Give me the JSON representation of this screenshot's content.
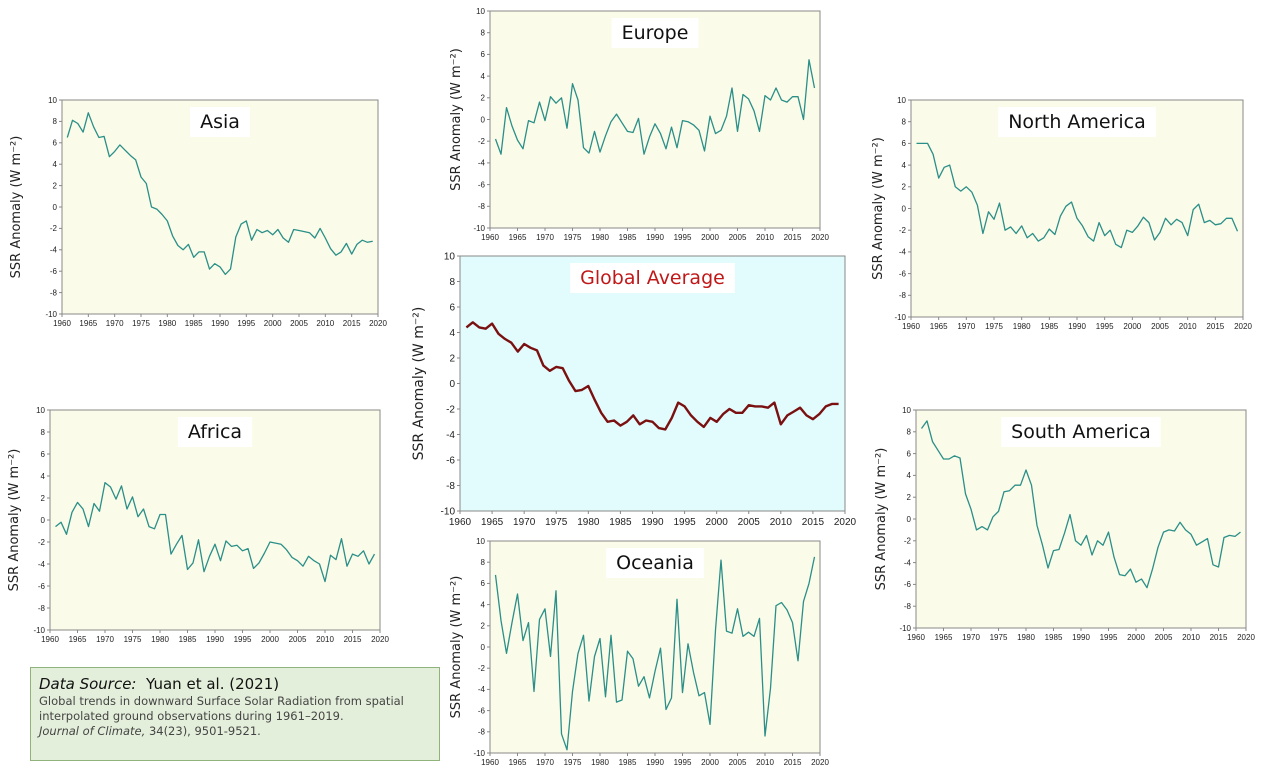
{
  "chart_data": [
    {
      "type": "line",
      "title": "Asia",
      "ylabel": "SSR Anomaly (W m⁻²)",
      "color": "#2a8f88",
      "background": "#fbfbe9",
      "title_color": "#111111",
      "x": [
        1961,
        1962,
        1963,
        1964,
        1965,
        1966,
        1967,
        1968,
        1969,
        1970,
        1971,
        1972,
        1973,
        1974,
        1975,
        1976,
        1977,
        1978,
        1979,
        1980,
        1981,
        1982,
        1983,
        1984,
        1985,
        1986,
        1987,
        1988,
        1989,
        1990,
        1991,
        1992,
        1993,
        1994,
        1995,
        1996,
        1997,
        1998,
        1999,
        2000,
        2001,
        2002,
        2003,
        2004,
        2005,
        2006,
        2007,
        2008,
        2009,
        2010,
        2011,
        2012,
        2013,
        2014,
        2015,
        2016,
        2017,
        2018,
        2019
      ],
      "values": [
        6.5,
        8.1,
        7.8,
        7.0,
        8.8,
        7.5,
        6.5,
        6.6,
        4.7,
        5.2,
        5.8,
        5.3,
        4.8,
        4.4,
        2.8,
        2.2,
        0.0,
        -0.2,
        -0.7,
        -1.3,
        -2.7,
        -3.6,
        -4.0,
        -3.5,
        -4.7,
        -4.2,
        -4.2,
        -5.8,
        -5.3,
        -5.6,
        -6.3,
        -5.8,
        -2.8,
        -1.6,
        -1.3,
        -3.1,
        -2.1,
        -2.4,
        -2.2,
        -2.6,
        -2.1,
        -2.9,
        -3.3,
        -2.1,
        -2.2,
        -2.3,
        -2.4,
        -2.9,
        -2.0,
        -2.9,
        -3.9,
        -4.5,
        -4.2,
        -3.4,
        -4.4,
        -3.5,
        -3.1,
        -3.3,
        -3.2
      ],
      "xlim": [
        1960,
        2020
      ],
      "xticks": [
        1960,
        1965,
        1970,
        1975,
        1980,
        1985,
        1990,
        1995,
        2000,
        2005,
        2010,
        2015,
        2020
      ],
      "ylim": [
        -10,
        10
      ],
      "yticks": [
        -10,
        -8,
        -6,
        -4,
        -2,
        0,
        2,
        4,
        6,
        8,
        10
      ]
    },
    {
      "type": "line",
      "title": "Europe",
      "ylabel": "SSR Anomaly (W m⁻²)",
      "color": "#2a8f88",
      "background": "#fbfbe9",
      "title_color": "#111111",
      "x": [
        1961,
        1962,
        1963,
        1964,
        1965,
        1966,
        1967,
        1968,
        1969,
        1970,
        1971,
        1972,
        1973,
        1974,
        1975,
        1976,
        1977,
        1978,
        1979,
        1980,
        1981,
        1982,
        1983,
        1984,
        1985,
        1986,
        1987,
        1988,
        1989,
        1990,
        1991,
        1992,
        1993,
        1994,
        1995,
        1996,
        1997,
        1998,
        1999,
        2000,
        2001,
        2002,
        2003,
        2004,
        2005,
        2006,
        2007,
        2008,
        2009,
        2010,
        2011,
        2012,
        2013,
        2014,
        2015,
        2016,
        2017,
        2018,
        2019
      ],
      "values": [
        -1.8,
        -3.2,
        1.1,
        -0.6,
        -1.9,
        -2.7,
        -0.1,
        -0.3,
        1.6,
        -0.1,
        2.1,
        1.5,
        2.0,
        -0.8,
        3.3,
        1.8,
        -2.6,
        -3.1,
        -1.1,
        -3.0,
        -1.5,
        -0.2,
        0.5,
        -0.3,
        -1.1,
        -1.2,
        0.1,
        -3.2,
        -1.6,
        -0.4,
        -1.3,
        -2.7,
        -0.7,
        -2.6,
        -0.1,
        -0.2,
        -0.5,
        -1.0,
        -2.9,
        0.3,
        -1.3,
        -1.0,
        0.3,
        2.9,
        -1.1,
        2.3,
        1.9,
        0.8,
        -1.1,
        2.2,
        1.8,
        2.9,
        1.8,
        1.6,
        2.1,
        2.1,
        0.0,
        5.5,
        2.9
      ],
      "xlim": [
        1960,
        2020
      ],
      "xticks": [
        1960,
        1965,
        1970,
        1975,
        1980,
        1985,
        1990,
        1995,
        2000,
        2005,
        2010,
        2015,
        2020
      ],
      "ylim": [
        -10,
        10
      ],
      "yticks": [
        -10,
        -8,
        -6,
        -4,
        -2,
        0,
        2,
        4,
        6,
        8,
        10
      ]
    },
    {
      "type": "line",
      "title": "North America",
      "ylabel": "SSR Anomaly (W m⁻²)",
      "color": "#2a8f88",
      "background": "#fbfbe9",
      "title_color": "#111111",
      "x": [
        1961,
        1962,
        1963,
        1964,
        1965,
        1966,
        1967,
        1968,
        1969,
        1970,
        1971,
        1972,
        1973,
        1974,
        1975,
        1976,
        1977,
        1978,
        1979,
        1980,
        1981,
        1982,
        1983,
        1984,
        1985,
        1986,
        1987,
        1988,
        1989,
        1990,
        1991,
        1992,
        1993,
        1994,
        1995,
        1996,
        1997,
        1998,
        1999,
        2000,
        2001,
        2002,
        2003,
        2004,
        2005,
        2006,
        2007,
        2008,
        2009,
        2010,
        2011,
        2012,
        2013,
        2014,
        2015,
        2016,
        2017,
        2018,
        2019
      ],
      "values": [
        6.0,
        6.0,
        6.0,
        5.0,
        2.8,
        3.8,
        4.0,
        2.0,
        1.6,
        2.0,
        1.5,
        0.3,
        -2.3,
        -0.3,
        -1.0,
        0.5,
        -2.0,
        -1.7,
        -2.3,
        -1.6,
        -2.7,
        -2.3,
        -3.0,
        -2.7,
        -1.9,
        -2.4,
        -0.7,
        0.2,
        0.6,
        -0.9,
        -1.6,
        -2.6,
        -3.0,
        -1.3,
        -2.5,
        -2.0,
        -3.3,
        -3.6,
        -2.0,
        -2.2,
        -1.6,
        -0.8,
        -1.3,
        -2.9,
        -2.2,
        -0.9,
        -1.5,
        -1.0,
        -1.3,
        -2.5,
        -0.1,
        0.4,
        -1.3,
        -1.1,
        -1.5,
        -1.4,
        -0.9,
        -0.9,
        -2.1
      ],
      "xlim": [
        1960,
        2020
      ],
      "xticks": [
        1960,
        1965,
        1970,
        1975,
        1980,
        1985,
        1990,
        1995,
        2000,
        2005,
        2010,
        2015,
        2020
      ],
      "ylim": [
        -10,
        10
      ],
      "yticks": [
        -10,
        -8,
        -6,
        -4,
        -2,
        0,
        2,
        4,
        6,
        8,
        10
      ]
    },
    {
      "type": "line",
      "title": "Africa",
      "ylabel": "SSR Anomaly (W m⁻²)",
      "color": "#2a8f88",
      "background": "#fbfbe9",
      "title_color": "#111111",
      "x": [
        1961,
        1962,
        1963,
        1964,
        1965,
        1966,
        1967,
        1968,
        1969,
        1970,
        1971,
        1972,
        1973,
        1974,
        1975,
        1976,
        1977,
        1978,
        1979,
        1980,
        1981,
        1982,
        1983,
        1984,
        1985,
        1986,
        1987,
        1988,
        1989,
        1990,
        1991,
        1992,
        1993,
        1994,
        1995,
        1996,
        1997,
        1998,
        1999,
        2000,
        2001,
        2002,
        2003,
        2004,
        2005,
        2006,
        2007,
        2008,
        2009,
        2010,
        2011,
        2012,
        2013,
        2014,
        2015,
        2016,
        2017,
        2018,
        2019
      ],
      "values": [
        -0.6,
        -0.2,
        -1.3,
        0.7,
        1.6,
        1.0,
        -0.6,
        1.5,
        0.8,
        3.4,
        3.0,
        1.9,
        3.1,
        1.0,
        2.1,
        0.3,
        1.0,
        -0.6,
        -0.8,
        0.5,
        0.5,
        -3.1,
        -2.2,
        -1.4,
        -4.5,
        -3.9,
        -1.8,
        -4.7,
        -3.3,
        -2.2,
        -3.7,
        -1.9,
        -2.4,
        -2.3,
        -2.8,
        -2.6,
        -4.4,
        -3.9,
        -3.0,
        -2.0,
        -2.1,
        -2.2,
        -2.7,
        -3.4,
        -3.7,
        -4.2,
        -3.3,
        -3.7,
        -4.0,
        -5.6,
        -3.2,
        -3.6,
        -1.7,
        -4.2,
        -3.1,
        -3.3,
        -2.8,
        -4.0,
        -3.1
      ],
      "xlim": [
        1960,
        2020
      ],
      "xticks": [
        1960,
        1965,
        1970,
        1975,
        1980,
        1985,
        1990,
        1995,
        2000,
        2005,
        2010,
        2015,
        2020
      ],
      "ylim": [
        -10,
        10
      ],
      "yticks": [
        -10,
        -8,
        -6,
        -4,
        -2,
        0,
        2,
        4,
        6,
        8,
        10
      ]
    },
    {
      "type": "line",
      "title": "Global Average",
      "ylabel": "SSR Anomaly (W m⁻²)",
      "color": "#7a1010",
      "background": "#e2fbfd",
      "title_color": "#c01818",
      "x": [
        1961,
        1962,
        1963,
        1964,
        1965,
        1966,
        1967,
        1968,
        1969,
        1970,
        1971,
        1972,
        1973,
        1974,
        1975,
        1976,
        1977,
        1978,
        1979,
        1980,
        1981,
        1982,
        1983,
        1984,
        1985,
        1986,
        1987,
        1988,
        1989,
        1990,
        1991,
        1992,
        1993,
        1994,
        1995,
        1996,
        1997,
        1998,
        1999,
        2000,
        2001,
        2002,
        2003,
        2004,
        2005,
        2006,
        2007,
        2008,
        2009,
        2010,
        2011,
        2012,
        2013,
        2014,
        2015,
        2016,
        2017,
        2018,
        2019
      ],
      "values": [
        4.4,
        4.8,
        4.4,
        4.3,
        4.7,
        3.9,
        3.5,
        3.2,
        2.5,
        3.1,
        2.8,
        2.6,
        1.4,
        1.0,
        1.3,
        1.2,
        0.2,
        -0.6,
        -0.5,
        -0.2,
        -1.3,
        -2.3,
        -3.0,
        -2.9,
        -3.3,
        -3.0,
        -2.5,
        -3.2,
        -2.9,
        -3.0,
        -3.5,
        -3.6,
        -2.7,
        -1.5,
        -1.8,
        -2.5,
        -3.0,
        -3.4,
        -2.7,
        -3.0,
        -2.4,
        -2.0,
        -2.3,
        -2.3,
        -1.7,
        -1.8,
        -1.8,
        -1.9,
        -1.5,
        -3.2,
        -2.5,
        -2.2,
        -1.9,
        -2.5,
        -2.8,
        -2.4,
        -1.8,
        -1.6,
        -1.6
      ],
      "xlim": [
        1960,
        2020
      ],
      "xticks": [
        1960,
        1965,
        1970,
        1975,
        1980,
        1985,
        1990,
        1995,
        2000,
        2005,
        2010,
        2015,
        2020
      ],
      "ylim": [
        -10,
        10
      ],
      "yticks": [
        -10,
        -8,
        -6,
        -4,
        -2,
        0,
        2,
        4,
        6,
        8,
        10
      ]
    },
    {
      "type": "line",
      "title": "Oceania",
      "ylabel": "SSR Anomaly (W m⁻²)",
      "color": "#2a8f88",
      "background": "#fbfbe9",
      "title_color": "#111111",
      "x": [
        1961,
        1962,
        1963,
        1964,
        1965,
        1966,
        1967,
        1968,
        1969,
        1970,
        1971,
        1972,
        1973,
        1974,
        1975,
        1976,
        1977,
        1978,
        1979,
        1980,
        1981,
        1982,
        1983,
        1984,
        1985,
        1986,
        1987,
        1988,
        1989,
        1990,
        1991,
        1992,
        1993,
        1994,
        1995,
        1996,
        1997,
        1998,
        1999,
        2000,
        2001,
        2002,
        2003,
        2004,
        2005,
        2006,
        2007,
        2008,
        2009,
        2010,
        2011,
        2012,
        2013,
        2014,
        2015,
        2016,
        2017,
        2018,
        2019
      ],
      "values": [
        6.8,
        2.5,
        -0.6,
        2.3,
        5.0,
        0.6,
        2.3,
        -4.2,
        2.6,
        3.6,
        -0.9,
        5.3,
        -8.2,
        -9.7,
        -4.2,
        -0.6,
        1.1,
        -5.1,
        -0.9,
        0.8,
        -4.7,
        1.1,
        -5.2,
        -5.0,
        -0.4,
        -1.1,
        -3.7,
        -2.8,
        -4.8,
        -2.3,
        -0.1,
        -5.9,
        -4.8,
        4.5,
        -4.3,
        0.3,
        -2.4,
        -4.6,
        -4.3,
        -7.3,
        1.6,
        8.2,
        1.5,
        1.3,
        3.6,
        1.0,
        1.4,
        1.0,
        2.7,
        -8.4,
        -3.9,
        3.9,
        4.2,
        3.5,
        2.3,
        -1.3,
        4.3,
        6.0,
        8.5
      ],
      "xlim": [
        1960,
        2020
      ],
      "xticks": [
        1960,
        1965,
        1970,
        1975,
        1980,
        1985,
        1990,
        1995,
        2000,
        2005,
        2010,
        2015,
        2020
      ],
      "ylim": [
        -10,
        10
      ],
      "yticks": [
        -10,
        -8,
        -6,
        -4,
        -2,
        0,
        2,
        4,
        6,
        8,
        10
      ]
    },
    {
      "type": "line",
      "title": "South America",
      "ylabel": "SSR Anomaly (W m⁻²)",
      "color": "#2a8f88",
      "background": "#fbfbe9",
      "title_color": "#111111",
      "x": [
        1961,
        1962,
        1963,
        1964,
        1965,
        1966,
        1967,
        1968,
        1969,
        1970,
        1971,
        1972,
        1973,
        1974,
        1975,
        1976,
        1977,
        1978,
        1979,
        1980,
        1981,
        1982,
        1983,
        1984,
        1985,
        1986,
        1987,
        1988,
        1989,
        1990,
        1991,
        1992,
        1993,
        1994,
        1995,
        1996,
        1997,
        1998,
        1999,
        2000,
        2001,
        2002,
        2003,
        2004,
        2005,
        2006,
        2007,
        2008,
        2009,
        2010,
        2011,
        2012,
        2013,
        2014,
        2015,
        2016,
        2017,
        2018,
        2019
      ],
      "values": [
        8.3,
        9.0,
        7.1,
        6.3,
        5.5,
        5.5,
        5.8,
        5.6,
        2.3,
        0.9,
        -1.0,
        -0.7,
        -1.0,
        0.2,
        0.7,
        2.5,
        2.6,
        3.1,
        3.1,
        4.5,
        3.1,
        -0.6,
        -2.4,
        -4.5,
        -2.9,
        -2.8,
        -1.3,
        0.4,
        -2.0,
        -2.4,
        -1.5,
        -3.3,
        -2.0,
        -2.4,
        -1.2,
        -3.5,
        -5.1,
        -5.2,
        -4.6,
        -5.8,
        -5.5,
        -6.3,
        -4.6,
        -2.6,
        -1.2,
        -1.0,
        -1.1,
        -0.3,
        -1.0,
        -1.4,
        -2.4,
        -2.1,
        -1.8,
        -4.2,
        -4.4,
        -1.7,
        -1.5,
        -1.6,
        -1.2
      ],
      "xlim": [
        1960,
        2020
      ],
      "xticks": [
        1960,
        1965,
        1970,
        1975,
        1980,
        1985,
        1990,
        1995,
        2000,
        2005,
        2010,
        2015,
        2020
      ],
      "ylim": [
        -10,
        10
      ],
      "yticks": [
        -10,
        -8,
        -6,
        -4,
        -2,
        0,
        2,
        4,
        6,
        8,
        10
      ]
    }
  ],
  "source": {
    "label": "Data Source:",
    "citation": "Yuan et al. (2021)",
    "text": "Global trends in downward Surface Solar Radiation from spatial interpolated ground observations during 1961–2019.",
    "journal": "Journal of Climate,",
    "volume": "34(23), 9501-9521."
  }
}
